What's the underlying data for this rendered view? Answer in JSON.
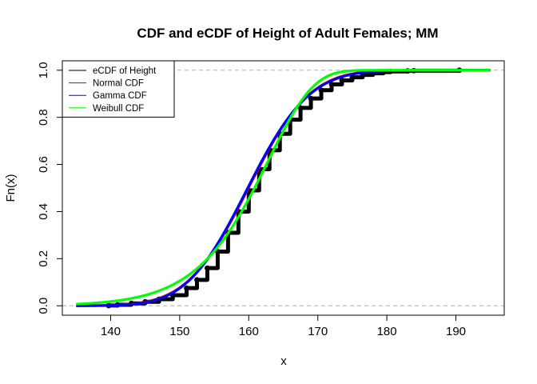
{
  "chart_data": {
    "type": "line",
    "title": "CDF and eCDF of Height of Adult Females; MM",
    "xlabel": "x",
    "ylabel": "Fn(x)",
    "xlim": [
      133,
      197
    ],
    "ylim": [
      -0.04,
      1.04
    ],
    "xticks": [
      140,
      150,
      160,
      170,
      180,
      190
    ],
    "yticks": [
      0.0,
      0.2,
      0.4,
      0.6,
      0.8,
      1.0
    ],
    "ytick_labels": [
      "0.0",
      "0.2",
      "0.4",
      "0.6",
      "0.8",
      "1.0"
    ],
    "reference_lines": [
      0,
      1
    ],
    "legend_position": "top-left",
    "grid": false,
    "series": [
      {
        "name": "eCDF of Height",
        "kind": "step",
        "color": "#000000",
        "points": [
          [
            139.7,
            0.001
          ],
          [
            141.0,
            0.004
          ],
          [
            143.0,
            0.01
          ],
          [
            145.0,
            0.017
          ],
          [
            147.0,
            0.028
          ],
          [
            149.0,
            0.045
          ],
          [
            151.0,
            0.075
          ],
          [
            152.5,
            0.11
          ],
          [
            154.0,
            0.16
          ],
          [
            155.5,
            0.23
          ],
          [
            157.0,
            0.31
          ],
          [
            158.5,
            0.4
          ],
          [
            160.0,
            0.49
          ],
          [
            161.5,
            0.58
          ],
          [
            163.0,
            0.66
          ],
          [
            164.5,
            0.73
          ],
          [
            166.0,
            0.79
          ],
          [
            167.5,
            0.84
          ],
          [
            169.0,
            0.88
          ],
          [
            170.5,
            0.915
          ],
          [
            172.0,
            0.94
          ],
          [
            173.5,
            0.957
          ],
          [
            175.0,
            0.97
          ],
          [
            176.5,
            0.98
          ],
          [
            178.0,
            0.987
          ],
          [
            179.5,
            0.992
          ],
          [
            180.5,
            0.995
          ],
          [
            183.0,
            0.997
          ],
          [
            183.9,
            0.998
          ],
          [
            190.5,
            1.0
          ]
        ]
      },
      {
        "name": "Normal CDF",
        "kind": "normal",
        "color": "#cc0000",
        "mean": 159.95,
        "sd": 6.97,
        "from": 135,
        "to": 195
      },
      {
        "name": "Gamma CDF",
        "kind": "gamma",
        "color": "#0000ff",
        "shape": 527,
        "rate": 3.2948,
        "from": 135,
        "to": 195
      },
      {
        "name": "Weibull CDF",
        "kind": "weibull",
        "color": "#00ff00",
        "shape": 26.2,
        "scale": 163.1,
        "from": 135,
        "to": 195
      }
    ]
  }
}
